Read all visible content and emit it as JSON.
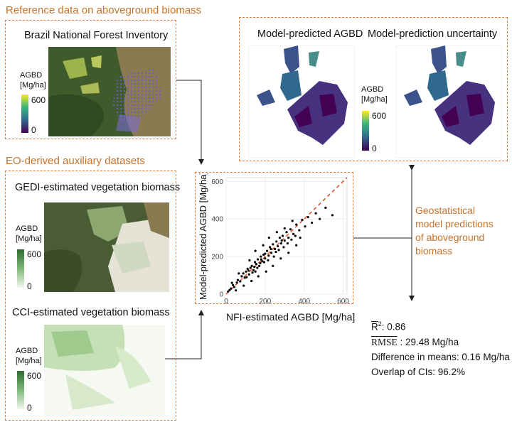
{
  "sections": {
    "reference": "Reference data on aboveground biomass",
    "auxiliary": "EO-derived auxiliary datasets"
  },
  "nfi_map": {
    "title": "Brazil National Forest Inventory",
    "colorbar_label_1": "AGBD",
    "colorbar_label_2": "[Mg/ha]",
    "tick_high": "600",
    "tick_low": "0"
  },
  "gedi_map": {
    "title": "GEDI-estimated vegetation biomass",
    "colorbar_label_1": "AGBD",
    "colorbar_label_2": "[Mg/ha]",
    "tick_high": "600",
    "tick_low": "0"
  },
  "cci_map": {
    "title": "CCI-estimated vegetation biomass",
    "colorbar_label_1": "AGBD",
    "colorbar_label_2": "[Mg/ha]",
    "tick_high": "600",
    "tick_low": "0"
  },
  "predictions": {
    "title_left": "Model-predicted AGBD",
    "title_right": "Model-prediction uncertainty",
    "colorbar_label_1": "AGBD",
    "colorbar_label_2": "[Mg/ha]",
    "tick_high": "600",
    "tick_low": "0"
  },
  "geostat_caption": {
    "line1": "Geostatistical",
    "line2": "model predictions",
    "line3": "of aboveground",
    "line4": "biomass"
  },
  "stats": {
    "r2_symbol": "R",
    "r2_text": ": 0.86",
    "rmse_symbol": "RMSE",
    "rmse_text": " : 29.48 Mg/ha",
    "diff": "Difference in means: 0.16 Mg/ha",
    "overlap": "Overlap of CIs: 96.2%"
  },
  "colors": {
    "accent_orange": "#e07b39",
    "title_orange": "#c8732c",
    "viridis_low": "#440154",
    "viridis_high": "#fde725",
    "green_low": "#f2f7ee",
    "green_high": "#2f6b2f",
    "scatter_points": "#000000",
    "one_to_one_line": "#e0502a"
  },
  "chart_data": {
    "type": "scatter",
    "xlabel": "NFI-estimated AGBD [Mg/ha]",
    "ylabel": "Model-predicted AGBD [Mg/ha]",
    "xlim": [
      0,
      620
    ],
    "ylim": [
      0,
      620
    ],
    "xticks": [
      "0",
      "200",
      "400",
      "600"
    ],
    "yticks": [
      "0",
      "200",
      "400",
      "600"
    ],
    "reference_line": "1:1 dashed",
    "grid": true,
    "points": [
      [
        10,
        14
      ],
      [
        18,
        22
      ],
      [
        25,
        30
      ],
      [
        35,
        48
      ],
      [
        42,
        38
      ],
      [
        55,
        62
      ],
      [
        60,
        75
      ],
      [
        72,
        68
      ],
      [
        80,
        95
      ],
      [
        88,
        110
      ],
      [
        95,
        88
      ],
      [
        102,
        120
      ],
      [
        110,
        135
      ],
      [
        118,
        105
      ],
      [
        125,
        140
      ],
      [
        132,
        150
      ],
      [
        140,
        128
      ],
      [
        148,
        170
      ],
      [
        155,
        160
      ],
      [
        162,
        185
      ],
      [
        170,
        150
      ],
      [
        178,
        200
      ],
      [
        185,
        175
      ],
      [
        192,
        210
      ],
      [
        200,
        190
      ],
      [
        210,
        230
      ],
      [
        218,
        205
      ],
      [
        225,
        250
      ],
      [
        232,
        220
      ],
      [
        240,
        265
      ],
      [
        250,
        240
      ],
      [
        258,
        280
      ],
      [
        265,
        255
      ],
      [
        275,
        300
      ],
      [
        282,
        270
      ],
      [
        290,
        310
      ],
      [
        300,
        285
      ],
      [
        310,
        330
      ],
      [
        320,
        300
      ],
      [
        330,
        345
      ],
      [
        345,
        320
      ],
      [
        360,
        370
      ],
      [
        375,
        340
      ],
      [
        390,
        395
      ],
      [
        405,
        360
      ],
      [
        420,
        410
      ],
      [
        440,
        380
      ],
      [
        460,
        430
      ],
      [
        480,
        400
      ],
      [
        510,
        460
      ],
      [
        545,
        420
      ],
      [
        30,
        60
      ],
      [
        50,
        20
      ],
      [
        65,
        110
      ],
      [
        90,
        45
      ],
      [
        120,
        180
      ],
      [
        130,
        70
      ],
      [
        150,
        230
      ],
      [
        165,
        95
      ],
      [
        190,
        260
      ],
      [
        205,
        120
      ],
      [
        220,
        300
      ],
      [
        240,
        150
      ],
      [
        260,
        330
      ],
      [
        280,
        190
      ],
      [
        300,
        350
      ],
      [
        320,
        220
      ],
      [
        340,
        390
      ],
      [
        360,
        260
      ],
      [
        380,
        300
      ],
      [
        150,
        120
      ],
      [
        175,
        165
      ],
      [
        200,
        215
      ],
      [
        215,
        180
      ],
      [
        245,
        200
      ],
      [
        270,
        235
      ],
      [
        295,
        250
      ],
      [
        315,
        270
      ],
      [
        335,
        290
      ],
      [
        355,
        310
      ],
      [
        105,
        90
      ],
      [
        115,
        125
      ],
      [
        135,
        115
      ],
      [
        145,
        145
      ],
      [
        160,
        140
      ],
      [
        180,
        185
      ],
      [
        195,
        170
      ],
      [
        230,
        240
      ],
      [
        255,
        225
      ],
      [
        285,
        285
      ]
    ]
  }
}
